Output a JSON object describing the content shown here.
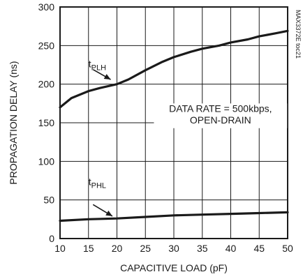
{
  "chart_data": {
    "type": "line",
    "title": "",
    "xlabel": "CAPACITIVE LOAD (pF)",
    "ylabel": "PROPAGATION DELAY (ns)",
    "xlim": [
      10,
      50
    ],
    "ylim": [
      0,
      300
    ],
    "xticks": [
      10,
      15,
      20,
      25,
      30,
      35,
      40,
      45,
      50
    ],
    "yticks": [
      0,
      50,
      100,
      150,
      200,
      250,
      300
    ],
    "grid": true,
    "series": [
      {
        "name": "tPLH",
        "label_main": "t",
        "label_sub": "PLH",
        "x": [
          10,
          12,
          15,
          17,
          20,
          22,
          25,
          28,
          30,
          33,
          35,
          38,
          40,
          43,
          45,
          48,
          50
        ],
        "y": [
          170,
          182,
          191,
          195,
          200,
          206,
          218,
          229,
          235,
          242,
          246,
          250,
          254,
          258,
          262,
          266,
          269
        ]
      },
      {
        "name": "tPHL",
        "label_main": "t",
        "label_sub": "PHL",
        "x": [
          10,
          15,
          20,
          25,
          30,
          35,
          40,
          45,
          50
        ],
        "y": [
          23,
          25,
          26,
          28,
          30,
          31,
          32,
          33,
          34
        ]
      }
    ],
    "annotation": {
      "line1": "DATA RATE = 500kbps,",
      "line2": "OPEN-DRAIN"
    },
    "side_label": "MAX3372E toc21"
  }
}
